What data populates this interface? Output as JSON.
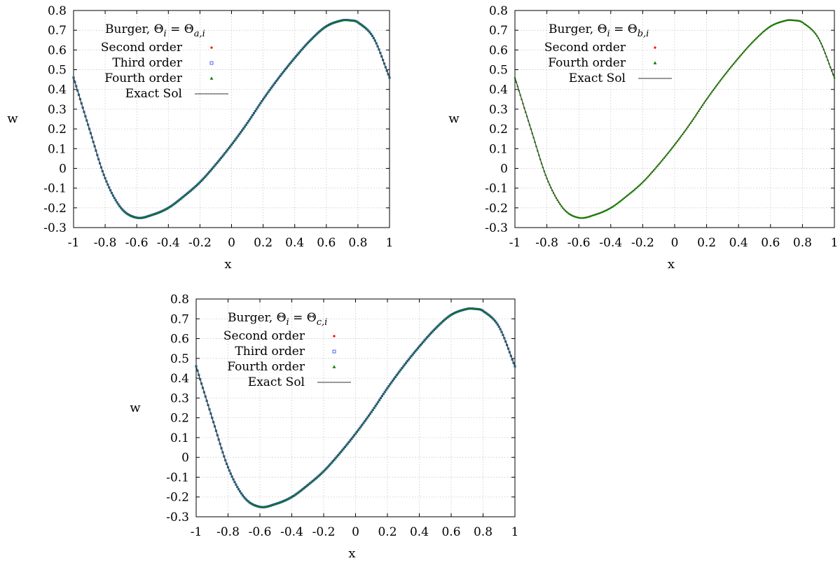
{
  "chart_data": [
    {
      "type": "scatter",
      "legend_title_parts": {
        "prefix": "Burger,",
        "lhs": "Θ",
        "lhs_sub": "i",
        "eq": "=",
        "rhs": "Θ",
        "rhs_sub": "a,i"
      },
      "xlabel": "x",
      "ylabel": "w",
      "xlim": [
        -1,
        1
      ],
      "ylim": [
        -0.3,
        0.8
      ],
      "xticks": [
        "-1",
        "-0.8",
        "-0.6",
        "-0.4",
        "-0.2",
        "0",
        "0.2",
        "0.4",
        "0.6",
        "0.8",
        "1"
      ],
      "yticks": [
        "-0.3",
        "-0.2",
        "-0.1",
        "0",
        "0.1",
        "0.2",
        "0.3",
        "0.4",
        "0.5",
        "0.6",
        "0.7",
        "0.8"
      ],
      "grid": true,
      "legend_position": "top-left",
      "series": [
        {
          "name": "Second order",
          "marker": "dot",
          "color": "#ff0000"
        },
        {
          "name": "Third order",
          "marker": "square",
          "color": "#3333ff"
        },
        {
          "name": "Fourth order",
          "marker": "triangle",
          "color": "#008000"
        },
        {
          "name": "Exact Sol",
          "marker": "line",
          "color": "#333333"
        }
      ],
      "x": [
        -1,
        -0.9,
        -0.8,
        -0.7,
        -0.6,
        -0.5,
        -0.4,
        -0.3,
        -0.2,
        -0.1,
        0,
        0.1,
        0.2,
        0.3,
        0.4,
        0.5,
        0.6,
        0.7,
        0.75,
        0.8,
        0.9,
        1
      ],
      "y": [
        0.46,
        0.2,
        -0.05,
        -0.2,
        -0.25,
        -0.235,
        -0.2,
        -0.14,
        -0.07,
        0.02,
        0.12,
        0.23,
        0.35,
        0.46,
        0.56,
        0.65,
        0.72,
        0.75,
        0.75,
        0.74,
        0.66,
        0.46
      ]
    },
    {
      "type": "scatter",
      "legend_title_parts": {
        "prefix": "Burger,",
        "lhs": "Θ",
        "lhs_sub": "i",
        "eq": "=",
        "rhs": "Θ",
        "rhs_sub": "b,i"
      },
      "xlabel": "x",
      "ylabel": "w",
      "xlim": [
        -1,
        1
      ],
      "ylim": [
        -0.3,
        0.8
      ],
      "xticks": [
        "-1",
        "-0.8",
        "-0.6",
        "-0.4",
        "-0.2",
        "0",
        "0.2",
        "0.4",
        "0.6",
        "0.8",
        "1"
      ],
      "yticks": [
        "-0.3",
        "-0.2",
        "-0.1",
        "0",
        "0.1",
        "0.2",
        "0.3",
        "0.4",
        "0.5",
        "0.6",
        "0.7",
        "0.8"
      ],
      "grid": true,
      "legend_position": "top-left",
      "series": [
        {
          "name": "Second order",
          "marker": "dot",
          "color": "#ff0000"
        },
        {
          "name": "Fourth order",
          "marker": "triangle",
          "color": "#008000"
        },
        {
          "name": "Exact Sol",
          "marker": "line",
          "color": "#333333"
        }
      ],
      "x": [
        -1,
        -0.9,
        -0.8,
        -0.7,
        -0.6,
        -0.5,
        -0.4,
        -0.3,
        -0.2,
        -0.1,
        0,
        0.1,
        0.2,
        0.3,
        0.4,
        0.5,
        0.6,
        0.7,
        0.75,
        0.8,
        0.9,
        1
      ],
      "y": [
        0.46,
        0.2,
        -0.05,
        -0.2,
        -0.25,
        -0.235,
        -0.2,
        -0.14,
        -0.07,
        0.02,
        0.12,
        0.23,
        0.35,
        0.46,
        0.56,
        0.65,
        0.72,
        0.75,
        0.75,
        0.74,
        0.66,
        0.46
      ]
    },
    {
      "type": "scatter",
      "legend_title_parts": {
        "prefix": "Burger,",
        "lhs": "Θ",
        "lhs_sub": "i",
        "eq": "=",
        "rhs": "Θ",
        "rhs_sub": "c,i"
      },
      "xlabel": "x",
      "ylabel": "w",
      "xlim": [
        -1,
        1
      ],
      "ylim": [
        -0.3,
        0.8
      ],
      "xticks": [
        "-1",
        "-0.8",
        "-0.6",
        "-0.4",
        "-0.2",
        "0",
        "0.2",
        "0.4",
        "0.6",
        "0.8",
        "1"
      ],
      "yticks": [
        "-0.3",
        "-0.2",
        "-0.1",
        "0",
        "0.1",
        "0.2",
        "0.3",
        "0.4",
        "0.5",
        "0.6",
        "0.7",
        "0.8"
      ],
      "grid": true,
      "legend_position": "top-left",
      "series": [
        {
          "name": "Second order",
          "marker": "dot",
          "color": "#ff0000"
        },
        {
          "name": "Third order",
          "marker": "square",
          "color": "#3333ff"
        },
        {
          "name": "Fourth order",
          "marker": "triangle",
          "color": "#008000"
        },
        {
          "name": "Exact Sol",
          "marker": "line",
          "color": "#333333"
        }
      ],
      "x": [
        -1,
        -0.9,
        -0.8,
        -0.7,
        -0.6,
        -0.5,
        -0.4,
        -0.3,
        -0.2,
        -0.1,
        0,
        0.1,
        0.2,
        0.3,
        0.4,
        0.5,
        0.6,
        0.7,
        0.75,
        0.8,
        0.9,
        1
      ],
      "y": [
        0.46,
        0.2,
        -0.05,
        -0.2,
        -0.25,
        -0.235,
        -0.2,
        -0.14,
        -0.07,
        0.02,
        0.12,
        0.23,
        0.35,
        0.46,
        0.56,
        0.65,
        0.72,
        0.75,
        0.75,
        0.74,
        0.66,
        0.46
      ]
    }
  ]
}
